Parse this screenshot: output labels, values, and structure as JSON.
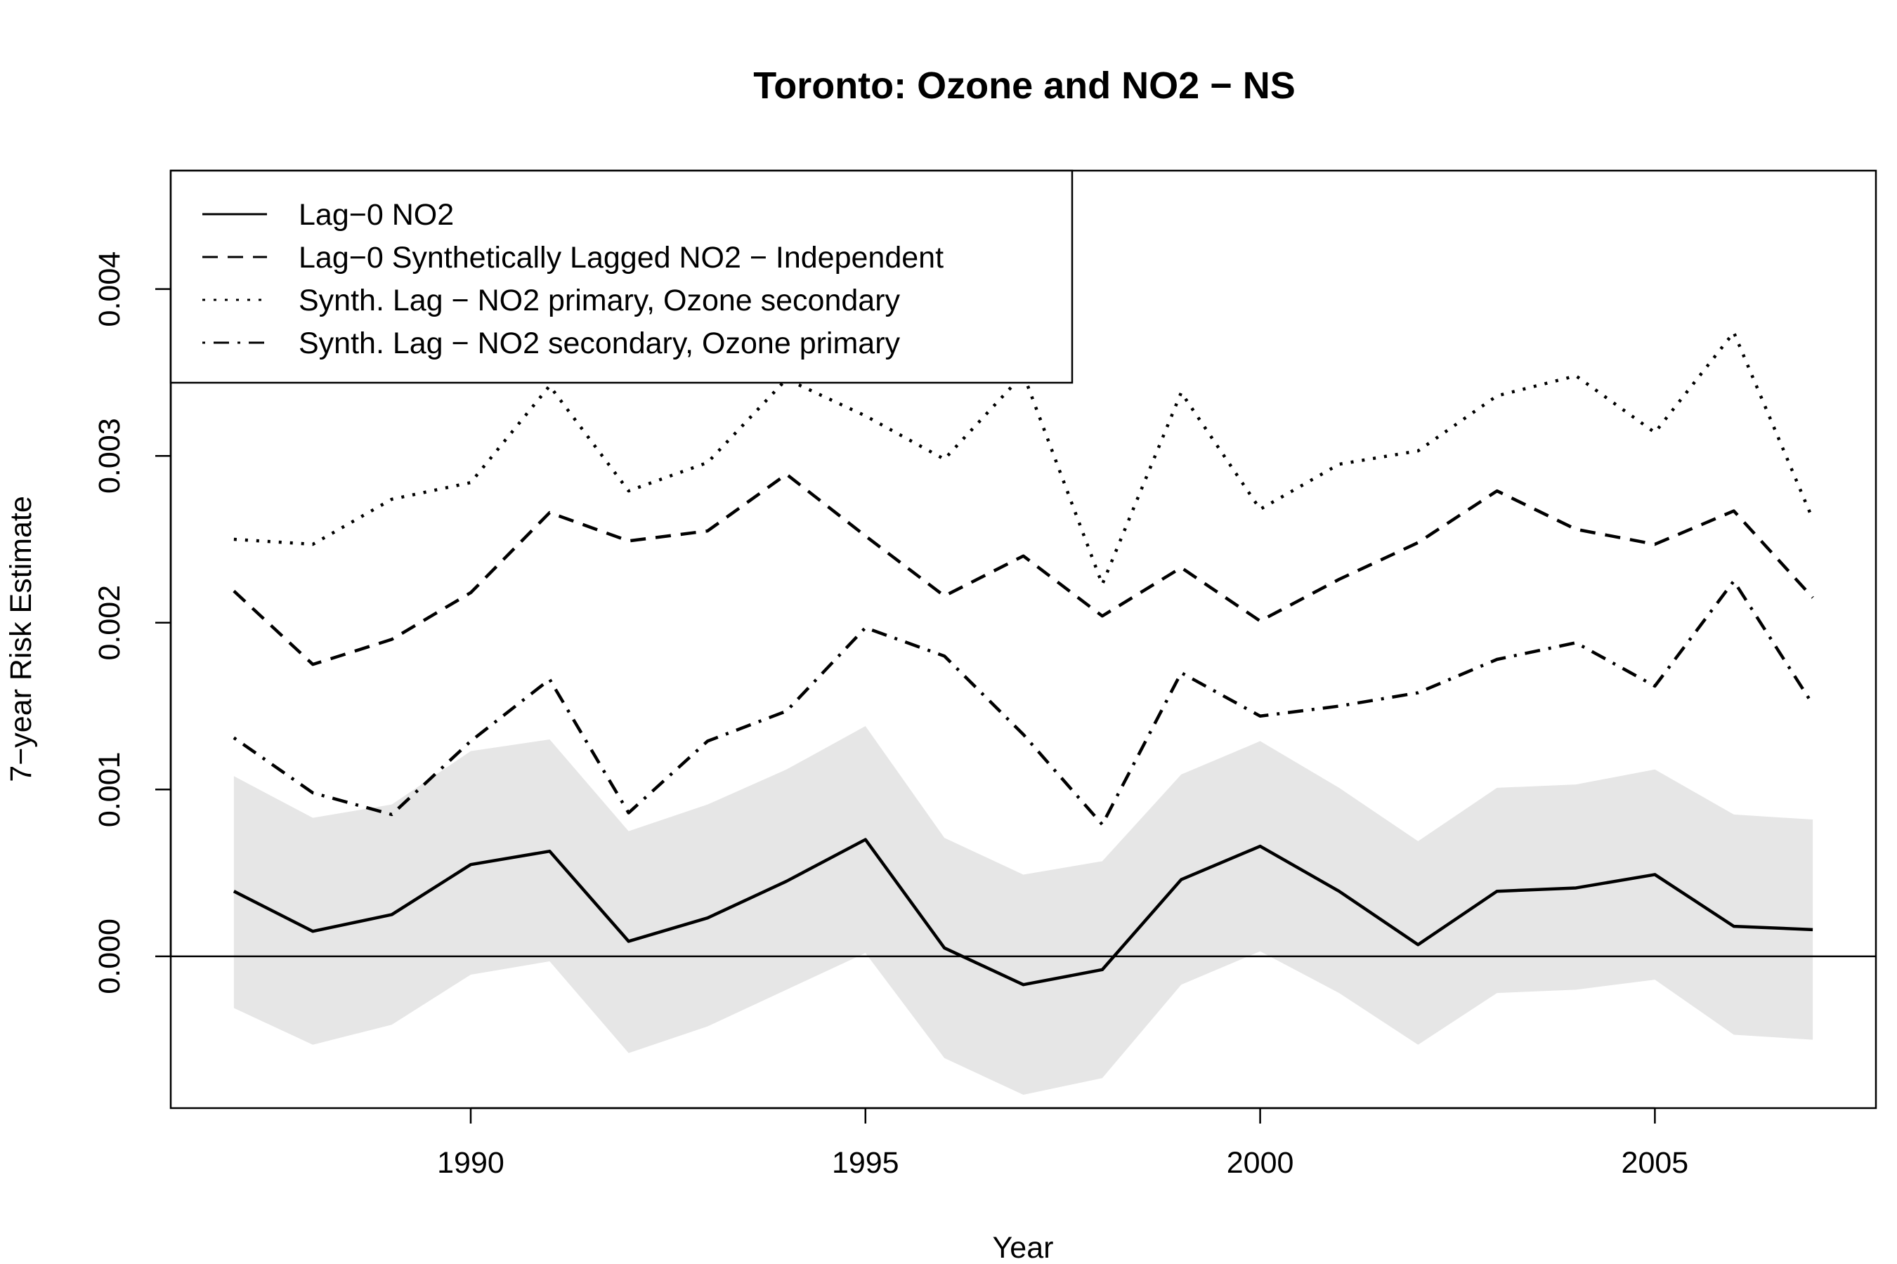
{
  "chart_data": {
    "type": "line",
    "title": "Toronto: Ozone and NO2 − NS",
    "xlabel": "Year",
    "ylabel": "7−year Risk Estimate",
    "xlim": [
      1986.2,
      2007.8
    ],
    "ylim": [
      -0.00091,
      0.00471
    ],
    "x_ticks": [
      1990,
      1995,
      2000,
      2005
    ],
    "y_ticks": [
      0,
      0.001,
      0.002,
      0.003,
      0.004
    ],
    "y_tick_labels": [
      "0.000",
      "0.001",
      "0.002",
      "0.003",
      "0.004"
    ],
    "x": [
      1987,
      1988,
      1989,
      1990,
      1991,
      1992,
      1993,
      1994,
      1995,
      1996,
      1997,
      1998,
      1999,
      2000,
      2001,
      2002,
      2003,
      2004,
      2005,
      2006,
      2007
    ],
    "series": [
      {
        "name": "Lag−0 NO2",
        "style": "solid",
        "values": [
          0.00039,
          0.00015,
          0.00025,
          0.00055,
          0.00063,
          9e-05,
          0.00023,
          0.00045,
          0.0007,
          5e-05,
          -0.00017,
          -8e-05,
          0.00046,
          0.00066,
          0.00039,
          7e-05,
          0.00039,
          0.00041,
          0.00049,
          0.00018,
          0.00016
        ]
      },
      {
        "name": "Lag−0 Synthetically Lagged NO2 − Independent",
        "style": "dashed",
        "values": [
          0.00219,
          0.00175,
          0.0019,
          0.00218,
          0.00266,
          0.00249,
          0.00255,
          0.00289,
          0.00252,
          0.00216,
          0.0024,
          0.00204,
          0.00233,
          0.00201,
          0.00226,
          0.00248,
          0.00279,
          0.00256,
          0.00247,
          0.00267,
          0.00215
        ]
      },
      {
        "name": "Synth. Lag − NO2 primary, Ozone secondary",
        "style": "dotted",
        "values": [
          0.0025,
          0.00247,
          0.00274,
          0.00284,
          0.00342,
          0.00279,
          0.00296,
          0.00346,
          0.00324,
          0.00298,
          0.00349,
          0.00223,
          0.00338,
          0.00268,
          0.00295,
          0.00303,
          0.00336,
          0.00348,
          0.00314,
          0.00374,
          0.00262
        ]
      },
      {
        "name": "Synth. Lag − NO2 secondary, Ozone primary",
        "style": "dotdash",
        "values": [
          0.00131,
          0.00098,
          0.00085,
          0.00129,
          0.00166,
          0.00086,
          0.00129,
          0.00147,
          0.00197,
          0.0018,
          0.00133,
          0.00079,
          0.0017,
          0.00144,
          0.0015,
          0.00158,
          0.00178,
          0.00188,
          0.00162,
          0.00225,
          0.00151
        ]
      }
    ],
    "band": {
      "series": "Lag−0 NO2",
      "upper": [
        0.00108,
        0.00083,
        0.00091,
        0.00123,
        0.0013,
        0.00075,
        0.00091,
        0.00112,
        0.00138,
        0.00071,
        0.00049,
        0.00057,
        0.00109,
        0.00129,
        0.00101,
        0.00069,
        0.00101,
        0.00103,
        0.00112,
        0.00085,
        0.00082
      ],
      "lower": [
        -0.00031,
        -0.00053,
        -0.00041,
        -0.00011,
        -3e-05,
        -0.00058,
        -0.00042,
        -0.0002,
        2e-05,
        -0.00061,
        -0.00083,
        -0.00073,
        -0.00017,
        3e-05,
        -0.00022,
        -0.00053,
        -0.00022,
        -0.0002,
        -0.00014,
        -0.00047,
        -0.0005
      ],
      "color": "#e6e6e6"
    },
    "reference_line": 0,
    "legend_position": "top-left",
    "grid": false
  }
}
